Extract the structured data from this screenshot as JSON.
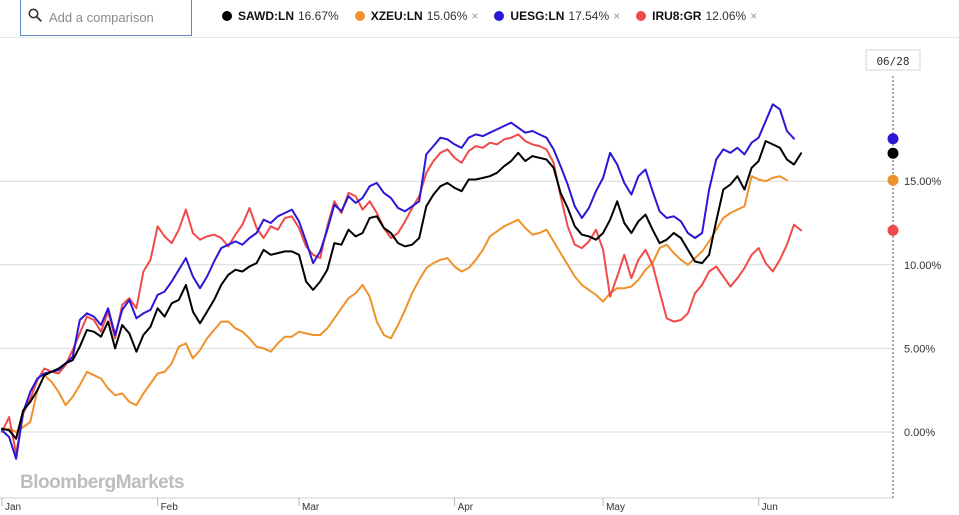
{
  "search": {
    "placeholder": "Add a comparison",
    "icon": "search-icon"
  },
  "legend": [
    {
      "ticker": "SAWD:LN",
      "pct": "16.67%",
      "color": "#000000",
      "removable": false
    },
    {
      "ticker": "XZEU:LN",
      "pct": "15.06%",
      "color": "#f0922b",
      "removable": true
    },
    {
      "ticker": "UESG:LN",
      "pct": "17.54%",
      "color": "#2b17d6",
      "removable": true
    },
    {
      "ticker": "IRU8:GR",
      "pct": "12.06%",
      "color": "#f04a4a",
      "removable": true
    }
  ],
  "remove_glyph": "×",
  "watermark": "BloombergMarkets",
  "cursor_date": "06/28",
  "chart_data": {
    "type": "line",
    "xlabel": "",
    "ylabel": "",
    "ylim": [
      -4,
      23.5
    ],
    "grid": true,
    "y_ticks": [
      0,
      5,
      10,
      15
    ],
    "y_tick_labels": [
      "0.00%",
      "5.00%",
      "10.00%",
      "15.00%"
    ],
    "x_month_labels": [
      "Jan",
      "Feb",
      "Mar",
      "Apr",
      "May",
      "Jun"
    ],
    "x_month_starts": [
      0,
      22,
      42,
      64,
      85,
      107
    ],
    "x_count": 127,
    "series": [
      {
        "name": "SAWD:LN",
        "color": "#000000",
        "last": 16.67,
        "values": [
          0.2,
          0.1,
          -0.4,
          1.3,
          1.8,
          2.5,
          3.4,
          3.6,
          3.8,
          4.1,
          4.3,
          5.1,
          6.1,
          6.0,
          5.7,
          6.6,
          5.0,
          6.4,
          5.9,
          4.8,
          5.8,
          6.3,
          7.4,
          6.9,
          7.7,
          7.9,
          8.8,
          7.2,
          6.5,
          7.2,
          7.9,
          8.8,
          9.4,
          9.7,
          9.6,
          9.9,
          10.1,
          10.9,
          10.6,
          10.7,
          10.8,
          10.8,
          10.6,
          9.0,
          8.5,
          9.0,
          9.7,
          11.3,
          11.2,
          12.1,
          11.7,
          11.9,
          12.8,
          12.9,
          12.2,
          11.9,
          11.3,
          11.1,
          11.2,
          11.6,
          13.5,
          14.2,
          14.7,
          14.9,
          14.6,
          14.4,
          15.1,
          15.1,
          15.2,
          15.3,
          15.5,
          15.9,
          16.2,
          16.7,
          16.2,
          16.5,
          16.4,
          16.3,
          15.8,
          14.3,
          13.4,
          12.3,
          11.8,
          11.7,
          11.5,
          11.9,
          12.7,
          13.8,
          12.5,
          11.9,
          12.6,
          13.0,
          12.1,
          11.3,
          11.5,
          11.9,
          11.6,
          10.9,
          10.2,
          10.1,
          10.6,
          12.6,
          14.5,
          14.8,
          15.3,
          14.5,
          15.8,
          16.2,
          17.4,
          17.2,
          17.0,
          16.3,
          16.0,
          16.67
        ]
      },
      {
        "name": "XZEU:LN",
        "color": "#f0922b",
        "last": 15.06,
        "values": [
          0.1,
          0.2,
          0.0,
          0.3,
          0.6,
          2.5,
          3.4,
          3.0,
          2.4,
          1.6,
          2.1,
          2.8,
          3.6,
          3.4,
          3.2,
          2.6,
          2.2,
          2.3,
          1.8,
          1.6,
          2.3,
          2.9,
          3.5,
          3.6,
          4.1,
          5.1,
          5.3,
          4.4,
          4.9,
          5.6,
          6.1,
          6.6,
          6.6,
          6.2,
          6.0,
          5.6,
          5.1,
          5.0,
          4.8,
          5.3,
          5.7,
          5.7,
          6.0,
          5.9,
          5.8,
          5.8,
          6.2,
          6.8,
          7.4,
          8.0,
          8.3,
          8.8,
          8.1,
          6.6,
          5.8,
          5.6,
          6.4,
          7.3,
          8.3,
          9.1,
          9.8,
          10.1,
          10.3,
          10.4,
          9.9,
          9.6,
          9.8,
          10.3,
          10.9,
          11.7,
          12.0,
          12.3,
          12.5,
          12.7,
          12.2,
          11.8,
          11.9,
          12.1,
          11.4,
          10.7,
          10.0,
          9.3,
          8.8,
          8.5,
          8.2,
          7.8,
          8.3,
          8.6,
          8.6,
          8.7,
          9.1,
          9.7,
          10.1,
          11.0,
          11.2,
          10.7,
          10.3,
          10.0,
          10.4,
          10.8,
          11.4,
          12.1,
          12.8,
          13.1,
          13.3,
          13.5,
          15.3,
          15.1,
          15.0,
          15.2,
          15.3,
          15.06
        ]
      },
      {
        "name": "UESG:LN",
        "color": "#2b17d6",
        "last": 17.54,
        "values": [
          0.1,
          -0.3,
          -1.6,
          1.2,
          2.4,
          3.2,
          3.5,
          3.6,
          3.7,
          4.1,
          4.5,
          6.7,
          7.1,
          6.9,
          6.4,
          7.4,
          5.8,
          7.3,
          7.9,
          6.8,
          7.1,
          7.3,
          8.2,
          8.4,
          9.0,
          9.7,
          10.4,
          9.3,
          8.6,
          9.3,
          10.2,
          11.0,
          11.2,
          11.4,
          11.2,
          11.6,
          11.9,
          12.7,
          12.5,
          12.9,
          13.1,
          13.3,
          12.6,
          11.4,
          10.1,
          10.8,
          12.1,
          13.6,
          13.2,
          14.1,
          13.7,
          14.0,
          14.7,
          14.9,
          14.3,
          14.0,
          13.4,
          13.2,
          13.5,
          13.8,
          16.6,
          17.1,
          17.6,
          17.5,
          17.2,
          17.0,
          17.6,
          17.8,
          17.7,
          17.9,
          18.1,
          18.3,
          18.5,
          18.2,
          17.9,
          18.0,
          17.8,
          17.6,
          16.9,
          15.9,
          14.8,
          13.5,
          12.8,
          13.4,
          14.4,
          15.2,
          16.7,
          16.0,
          14.9,
          14.2,
          15.3,
          15.7,
          14.4,
          13.2,
          12.8,
          12.9,
          12.6,
          11.9,
          11.6,
          11.9,
          14.5,
          16.3,
          16.9,
          16.7,
          17.0,
          16.6,
          17.3,
          17.6,
          18.6,
          19.6,
          19.3,
          18.0,
          17.54
        ]
      },
      {
        "name": "IRU8:GR",
        "color": "#f04a4a",
        "last": 12.06,
        "values": [
          0.0,
          0.9,
          -1.3,
          1.1,
          2.0,
          3.1,
          3.8,
          3.6,
          3.5,
          4.0,
          4.9,
          5.9,
          6.9,
          6.7,
          6.0,
          7.2,
          5.6,
          7.6,
          8.0,
          7.4,
          9.6,
          10.3,
          12.3,
          11.7,
          11.3,
          12.1,
          13.3,
          11.9,
          11.5,
          11.7,
          11.8,
          11.6,
          11.1,
          11.8,
          12.4,
          13.4,
          12.2,
          11.6,
          12.3,
          12.1,
          12.8,
          12.9,
          12.2,
          11.1,
          10.6,
          10.4,
          12.3,
          13.8,
          13.1,
          14.3,
          14.1,
          13.3,
          13.8,
          13.1,
          12.2,
          11.6,
          11.9,
          12.6,
          13.4,
          14.1,
          15.5,
          16.2,
          16.7,
          16.9,
          16.4,
          16.1,
          16.8,
          17.1,
          17.0,
          17.3,
          17.2,
          17.5,
          17.6,
          17.8,
          17.4,
          17.2,
          17.1,
          16.9,
          16.1,
          14.1,
          12.3,
          11.2,
          11.0,
          11.4,
          12.1,
          10.9,
          8.1,
          9.3,
          10.6,
          9.2,
          10.3,
          10.9,
          10.0,
          8.4,
          6.8,
          6.6,
          6.7,
          7.1,
          8.3,
          8.8,
          9.6,
          9.9,
          9.3,
          8.7,
          9.2,
          9.8,
          10.6,
          11.0,
          10.1,
          9.6,
          10.3,
          11.2,
          12.4,
          12.06
        ]
      }
    ]
  }
}
